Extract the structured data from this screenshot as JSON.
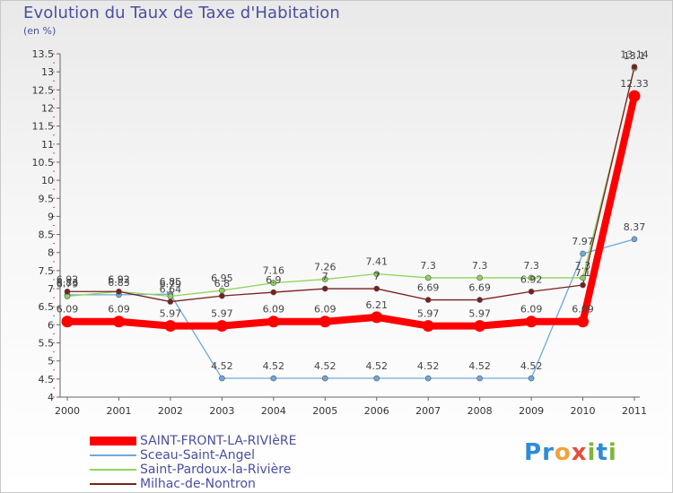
{
  "chart_data": {
    "type": "line",
    "title": "Evolution du Taux de Taxe d'Habitation",
    "subtitle": "(en %)",
    "categories": [
      "2000",
      "2001",
      "2002",
      "2003",
      "2004",
      "2005",
      "2006",
      "2007",
      "2008",
      "2009",
      "2010",
      "2011"
    ],
    "ylim": [
      4,
      13.5
    ],
    "yticks": [
      "4",
      "4.5",
      "5",
      "5.5",
      "6",
      "6.5",
      "7",
      "7.5",
      "8",
      "8.5",
      "9",
      "9.5",
      "10",
      "10.5",
      "11",
      "11.5",
      "12",
      "12.5",
      "13",
      "13.5"
    ],
    "grid": false,
    "legend_position": "bottom-left",
    "series": [
      {
        "name": "SAINT-FRONT-LA-RIVIèRE",
        "color": "#ff0000",
        "values": [
          6.09,
          6.09,
          5.97,
          5.97,
          6.09,
          6.09,
          6.21,
          5.97,
          5.97,
          6.09,
          6.09,
          12.33
        ],
        "labels": [
          "6.09",
          "6.09",
          "5.97",
          "5.97",
          "6.09",
          "6.09",
          "6.21",
          "5.97",
          "5.97",
          "6.09",
          "6.09",
          "12.33"
        ]
      },
      {
        "name": "Sceau-Saint-Angel",
        "color": "#6fa8dc",
        "values": [
          6.83,
          6.83,
          6.85,
          4.52,
          4.52,
          4.52,
          4.52,
          4.52,
          4.52,
          4.52,
          7.97,
          8.37
        ],
        "labels": [
          "6.83",
          "6.83",
          "6.85",
          "4.52",
          "4.52",
          "4.52",
          "4.52",
          "4.52",
          "4.52",
          "4.52",
          "7.97",
          "8.37"
        ]
      },
      {
        "name": "Saint-Pardoux-la-Rivière",
        "color": "#8fd45a",
        "values": [
          6.79,
          6.92,
          6.79,
          6.95,
          7.16,
          7.26,
          7.41,
          7.3,
          7.3,
          7.3,
          7.3,
          13.1
        ],
        "labels": [
          "6.79",
          "6.92",
          "6.79",
          "6.95",
          "7.16",
          "7.26",
          "7.41",
          "7.3",
          "7.3",
          "7.3",
          "7.3",
          "13.1"
        ]
      },
      {
        "name": "Milhac-de-Nontron",
        "color": "#7a1f1f",
        "values": [
          6.92,
          6.92,
          6.64,
          6.8,
          6.9,
          7.0,
          7.0,
          6.69,
          6.69,
          6.92,
          7.1,
          13.14
        ],
        "labels": [
          "6.92",
          "6.92",
          "6.64",
          "6.8",
          "6.9",
          "7",
          "7",
          "6.69",
          "6.69",
          "6.92",
          "7.1",
          "13.14"
        ]
      }
    ]
  },
  "brand": {
    "logo_letters": [
      "P",
      "r",
      "o",
      "x",
      "i",
      "t",
      "i"
    ],
    "logo_colors": [
      "#2e8bd6",
      "#2e8bd6",
      "#f2a23a",
      "#e74c3c",
      "#7fb539",
      "#2e8bd6",
      "#7fb539"
    ]
  }
}
